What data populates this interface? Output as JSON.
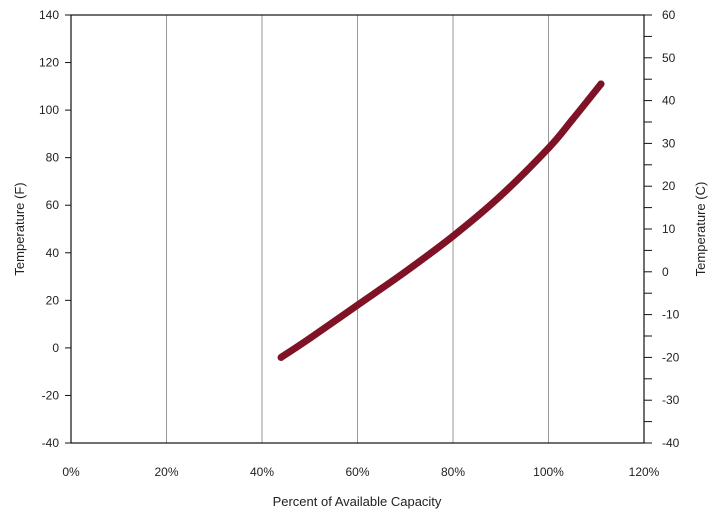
{
  "chart_data": {
    "type": "line",
    "title": "",
    "xlabel": "Percent of Available Capacity",
    "ylabel": "Temperature (F)",
    "y2label": "Temperature (C)",
    "xlim": [
      0,
      120
    ],
    "ylim": [
      -40,
      140
    ],
    "y2lim": [
      -40,
      60
    ],
    "x_ticks": [
      0,
      20,
      40,
      60,
      80,
      100,
      120
    ],
    "x_tick_labels": [
      "0%",
      "20%",
      "40%",
      "60%",
      "80%",
      "100%",
      "120%"
    ],
    "y_ticks": [
      -40,
      -20,
      0,
      20,
      40,
      60,
      80,
      100,
      120,
      140
    ],
    "y_tick_labels": [
      "-40",
      "-20",
      "0",
      "20",
      "40",
      "60",
      "80",
      "100",
      "120",
      "140"
    ],
    "y2_ticks": [
      -40,
      -30,
      -20,
      -10,
      0,
      10,
      20,
      30,
      40,
      50,
      60
    ],
    "y2_tick_labels": [
      "-40",
      "-30",
      "-20",
      "-10",
      "0",
      "10",
      "20",
      "30",
      "40",
      "50",
      "60"
    ],
    "grid": true,
    "series": [
      {
        "color": "#7f1325",
        "x": [
          44,
          50,
          60,
          70,
          80,
          90,
          100,
          105,
          111
        ],
        "y": [
          -4,
          4,
          18,
          32,
          47,
          64,
          84,
          96,
          111
        ]
      }
    ]
  }
}
